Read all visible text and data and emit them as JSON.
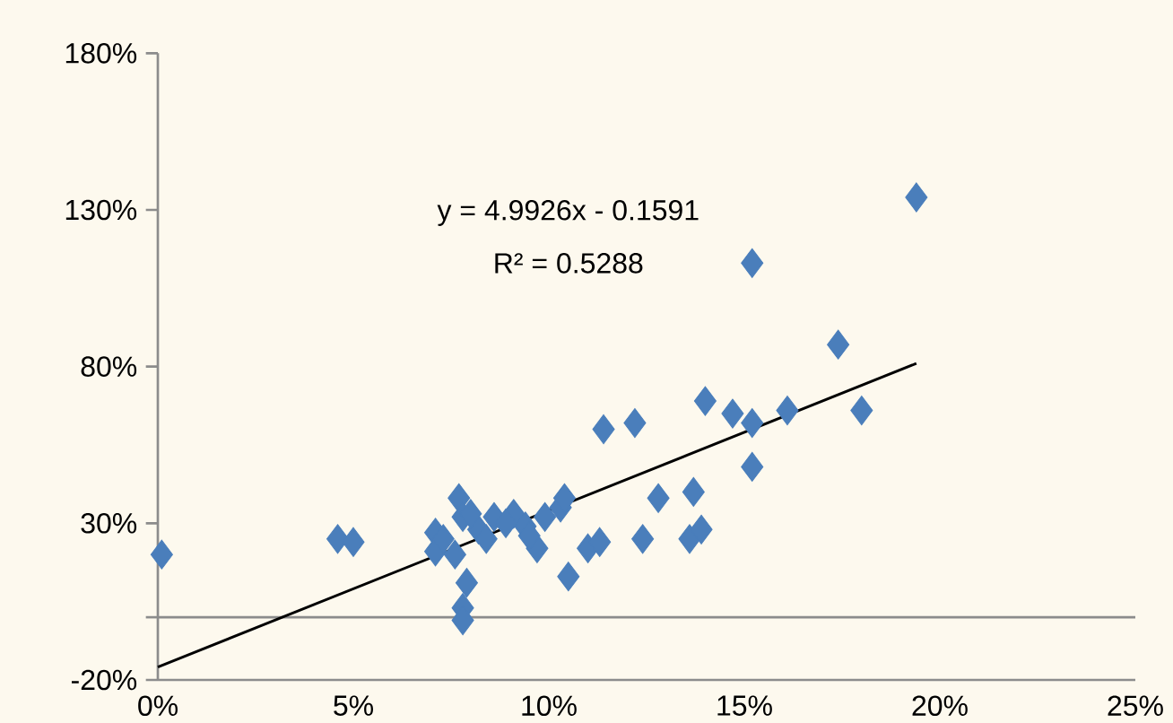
{
  "chart_data": {
    "type": "scatter",
    "marker": "diamond",
    "xlim": [
      0,
      25
    ],
    "ylim": [
      -20,
      180
    ],
    "xticks": [
      {
        "value": 0,
        "label": "0%"
      },
      {
        "value": 5,
        "label": "5%"
      },
      {
        "value": 10,
        "label": "10%"
      },
      {
        "value": 15,
        "label": "15%"
      },
      {
        "value": 20,
        "label": "20%"
      },
      {
        "value": 25,
        "label": "25%"
      }
    ],
    "yticks": [
      {
        "value": -20,
        "label": "-20%"
      },
      {
        "value": 30,
        "label": "30%"
      },
      {
        "value": 80,
        "label": "80%"
      },
      {
        "value": 130,
        "label": "130%"
      },
      {
        "value": 180,
        "label": "180%"
      }
    ],
    "annotations": [
      "y = 4.9926x - 0.1591",
      "R² = 0.5288"
    ],
    "series": [
      {
        "color": "#4a7ebb",
        "x": [
          0.1,
          4.6,
          5.0,
          7.1,
          7.1,
          7.7,
          7.8,
          7.6,
          7.9,
          7.8,
          7.8,
          8.2,
          8.4,
          8.6,
          8.0,
          8.8,
          9.1,
          9.2,
          9.7,
          9.4,
          10.1,
          10.3,
          10.4,
          9.9,
          10.5,
          11.0,
          11.3,
          11.4,
          12.2,
          12.4,
          12.8,
          13.6,
          13.9,
          13.7,
          14.0,
          14.7,
          15.2,
          15.2,
          15.2,
          16.1,
          17.4,
          18.0,
          19.4,
          7.3,
          8.9,
          9.5
        ],
        "values": [
          20,
          25,
          24,
          27,
          21,
          38,
          32,
          20,
          11,
          3,
          -1,
          28,
          25,
          32,
          33,
          null,
          33,
          null,
          22,
          29,
          null,
          35,
          38,
          32,
          13,
          22,
          24,
          60,
          62,
          25,
          38,
          25,
          28,
          40,
          69,
          65,
          62,
          48,
          113,
          66,
          87,
          66,
          134,
          25,
          30,
          26
        ]
      },
      {
        "type": "line",
        "marker": "none",
        "color": "#000000",
        "x": [
          0,
          19.4
        ],
        "values": [
          -15.9,
          81
        ]
      }
    ]
  }
}
